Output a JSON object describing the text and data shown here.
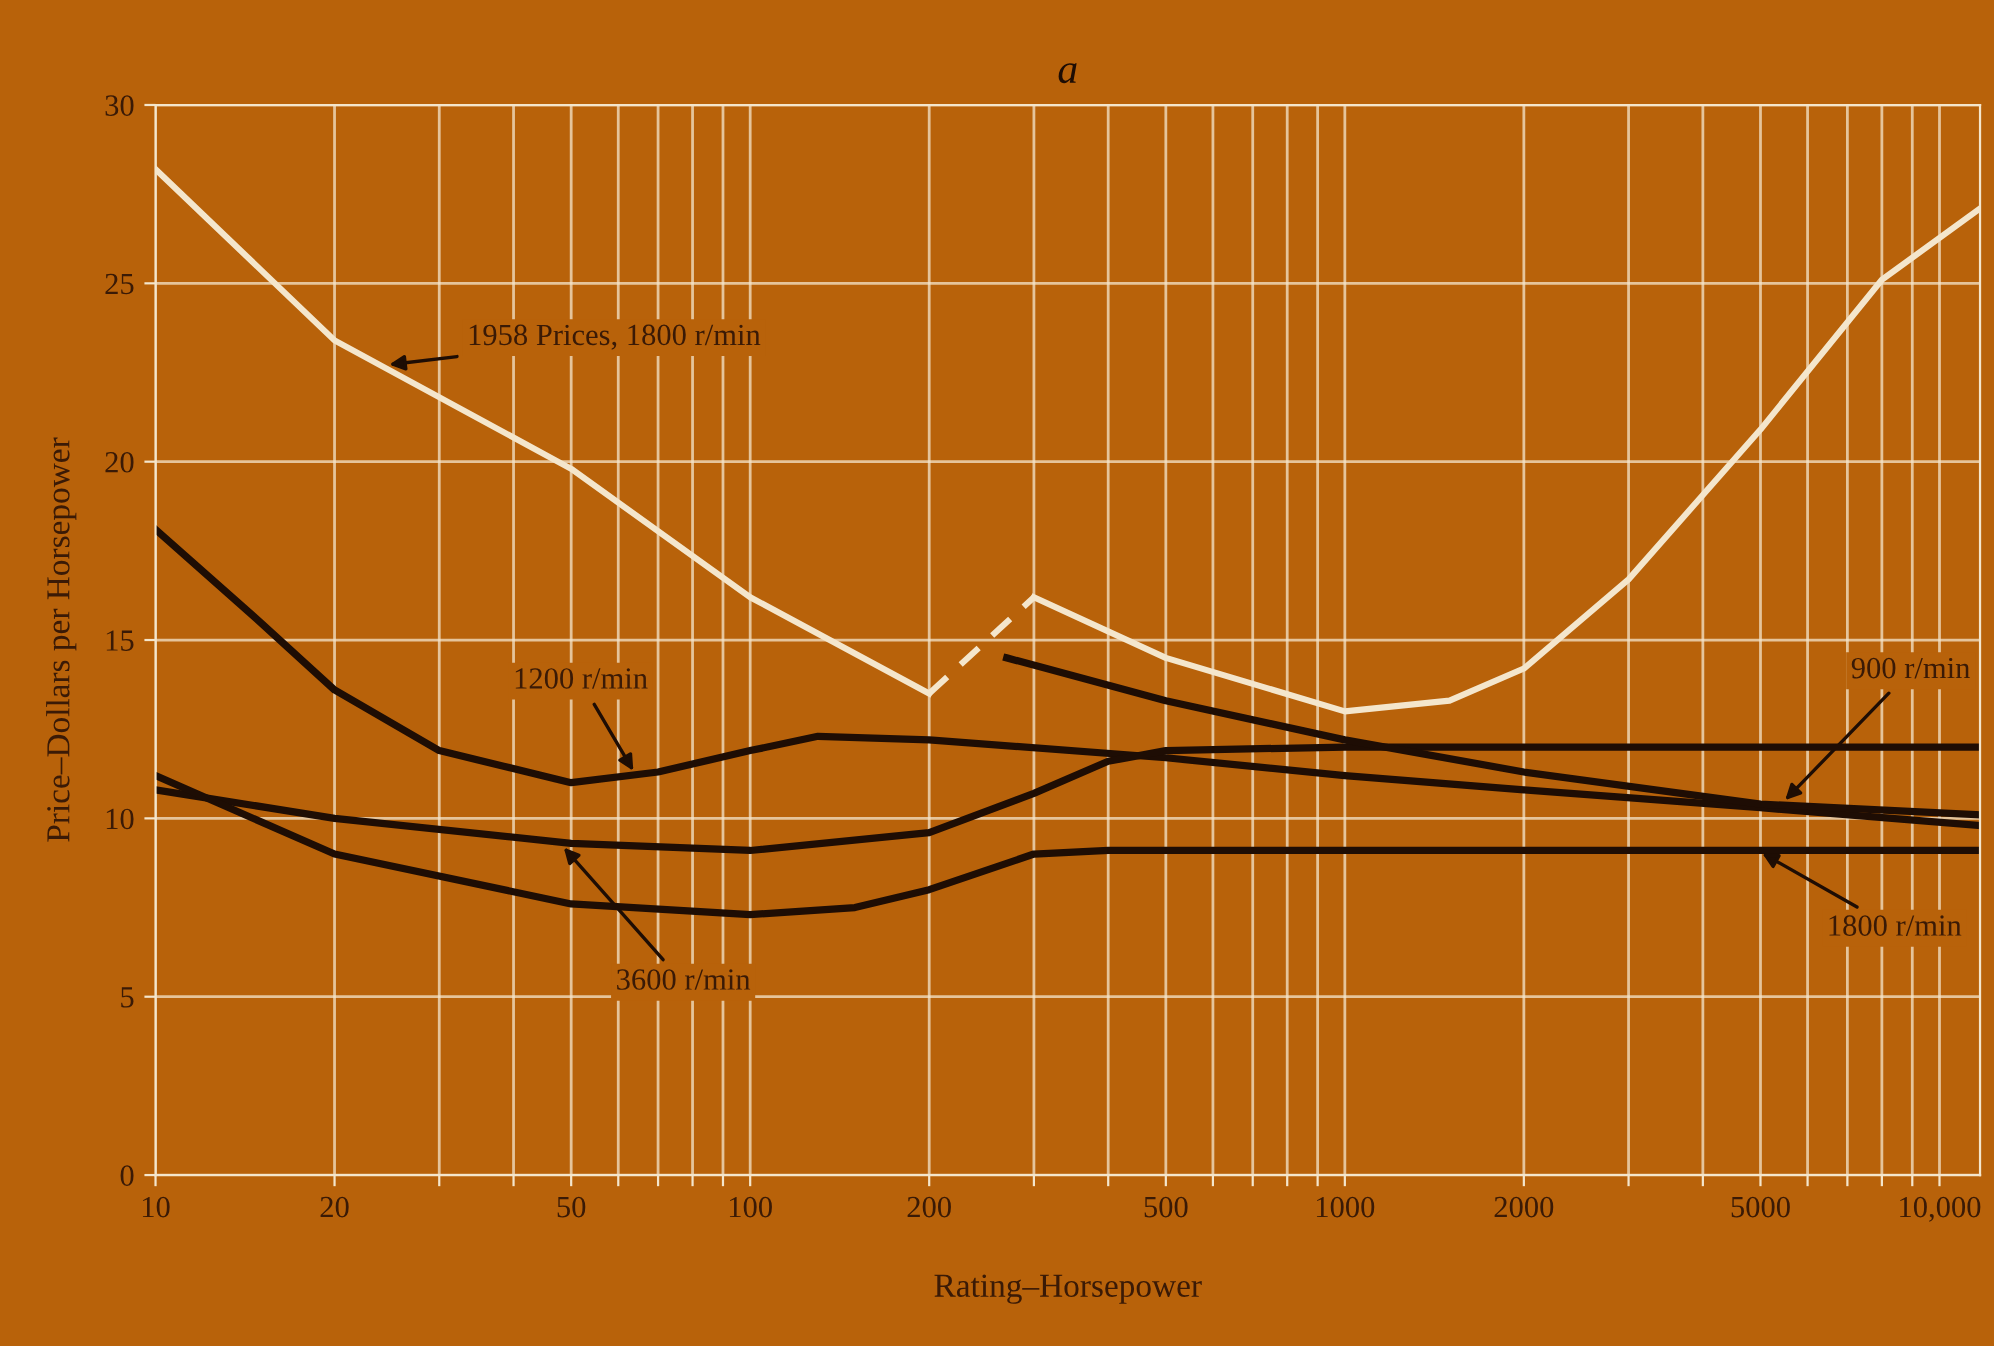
{
  "chart_data": {
    "type": "line",
    "title": "a",
    "xlabel": "Rating–Horsepower",
    "ylabel": "Price–Dollars per Horsepower",
    "log": "x",
    "grid": true,
    "marker": "none",
    "xlim": [
      10,
      11700
    ],
    "ylim": [
      0,
      30
    ],
    "xticks": [
      10,
      20,
      {
        "value": 30,
        "label": null
      },
      {
        "value": 40,
        "label": null
      },
      50,
      {
        "value": 60,
        "label": null
      },
      {
        "value": 70,
        "label": null
      },
      {
        "value": 80,
        "label": null
      },
      {
        "value": 90,
        "label": null
      },
      100,
      200,
      {
        "value": 300,
        "label": null
      },
      {
        "value": 400,
        "label": null
      },
      500,
      {
        "value": 600,
        "label": null
      },
      {
        "value": 700,
        "label": null
      },
      {
        "value": 800,
        "label": null
      },
      {
        "value": 900,
        "label": null
      },
      1000,
      2000,
      {
        "value": 3000,
        "label": null
      },
      {
        "value": 4000,
        "label": null
      },
      5000,
      {
        "value": 6000,
        "label": null
      },
      {
        "value": 7000,
        "label": null
      },
      {
        "value": 8000,
        "label": null
      },
      {
        "value": 9000,
        "label": null
      },
      {
        "value": 10000,
        "label": "10,000"
      }
    ],
    "yticks": [
      0,
      5,
      10,
      15,
      20,
      25,
      30
    ],
    "series": [
      {
        "color": "#f4e6cc",
        "line_style": "solid",
        "x": [
          10,
          20,
          50,
          100,
          200
        ],
        "values": [
          28.2,
          23.4,
          19.8,
          16.2,
          13.5
        ]
      },
      {
        "color": "#f4e6cc",
        "line_style": "dashed",
        "x": [
          200,
          300
        ],
        "values": [
          13.5,
          16.2
        ]
      },
      {
        "color": "#f4e6cc",
        "line_style": "solid",
        "x": [
          300,
          500,
          1000,
          1500,
          2000,
          3000,
          5000,
          8000,
          11700
        ],
        "values": [
          16.2,
          14.5,
          13.0,
          13.3,
          14.2,
          16.7,
          20.9,
          25.1,
          27.1
        ]
      },
      {
        "color": "#1e0d04",
        "line_style": "solid",
        "x": [
          10,
          15,
          20,
          30,
          50,
          70,
          100,
          130,
          200,
          500,
          1000,
          2000,
          5000,
          11700
        ],
        "values": [
          18.1,
          15.5,
          13.6,
          11.9,
          11.0,
          11.3,
          11.9,
          12.3,
          12.2,
          11.7,
          11.2,
          10.8,
          10.3,
          9.8
        ]
      },
      {
        "color": "#1e0d04",
        "line_style": "solid",
        "x": [
          10,
          20,
          50,
          100,
          200,
          300,
          400,
          500,
          1000,
          11700
        ],
        "values": [
          10.8,
          10.0,
          9.3,
          9.1,
          9.6,
          10.7,
          11.6,
          11.9,
          12.0,
          12.0
        ]
      },
      {
        "color": "#1e0d04",
        "line_style": "solid",
        "x": [
          10,
          20,
          50,
          100,
          150,
          200,
          300,
          400,
          11700
        ],
        "values": [
          11.2,
          9.0,
          7.6,
          7.3,
          7.5,
          8.0,
          9.0,
          9.1,
          9.1
        ]
      },
      {
        "color": "#1e0d04",
        "line_style": "solid",
        "x": [
          270,
          500,
          1000,
          2000,
          5000,
          11700
        ],
        "values": [
          14.5,
          13.3,
          12.2,
          11.3,
          10.4,
          10.1
        ]
      }
    ],
    "annotations": [
      {
        "text": "1958 Prices, 1800 r/min",
        "x": 24.2,
        "y": 22.7
      },
      {
        "text": "1200 r/min",
        "x": 64.3,
        "y": 11.2
      },
      {
        "text": "3600 r/min",
        "x": 47.9,
        "y": 9.3
      },
      {
        "text": "900 r/min",
        "x": 5420,
        "y": 10.4
      },
      {
        "text": "1800 r/min",
        "x": 4940,
        "y": 9.1
      }
    ]
  }
}
